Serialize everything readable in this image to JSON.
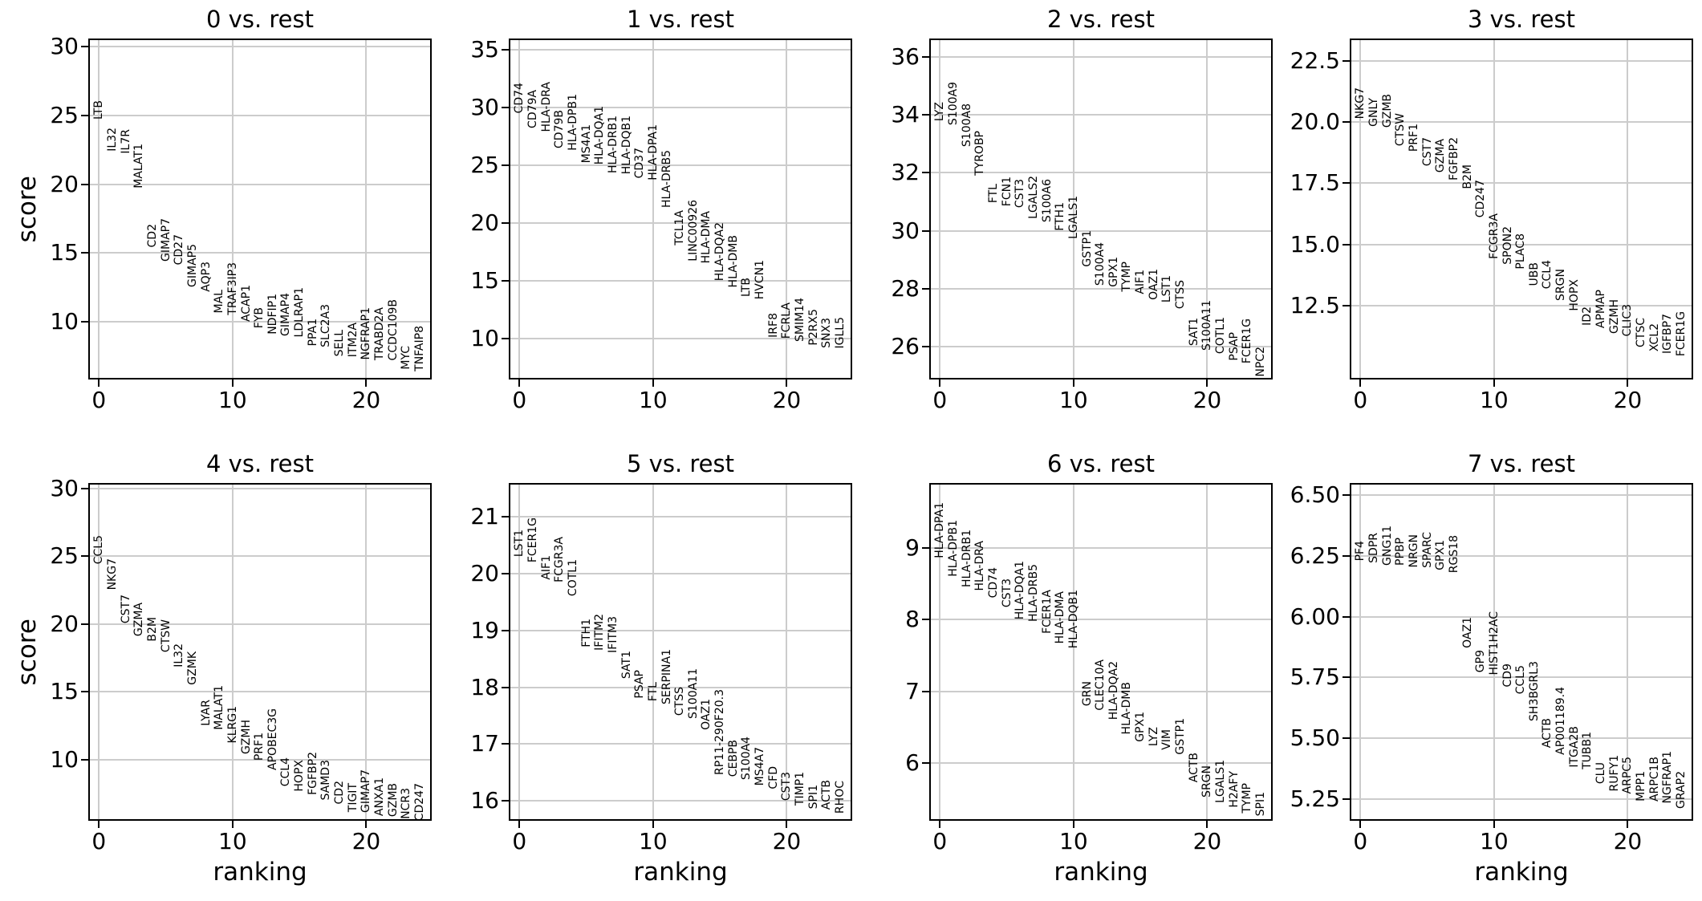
{
  "figure": {
    "background": "#ffffff",
    "grid_color": "#cccccc",
    "text_color": "#000000"
  },
  "chart_data": {
    "type": "scatter",
    "subtype": "rank-genes-groups-text-labels",
    "xlabel": "ranking",
    "ylabel": "score",
    "grid": true,
    "legend_position": "none",
    "xlim": [
      -0.8,
      24.9
    ],
    "xticks": [
      0,
      10,
      20
    ],
    "xtick_labels": [
      "0",
      "10",
      "20"
    ],
    "panels": [
      {
        "title": "0 vs. rest",
        "ylim": [
          5.8,
          30.6
        ],
        "yticks": [
          30,
          25,
          20,
          15,
          10
        ],
        "ytick_labels": [
          "30",
          "25",
          "20",
          "15",
          "10"
        ],
        "genes": [
          "LTB",
          "IL32",
          "IL7R",
          "MALAT1",
          "CD2",
          "GIMAP7",
          "CD27",
          "GIMAP5",
          "AQP3",
          "MAL",
          "TRAF3IP3",
          "ACAP1",
          "FYB",
          "NDFIP1",
          "GIMAP4",
          "LDLRAP1",
          "PPA1",
          "SLC2A3",
          "SELL",
          "ITM2A",
          "NGFRAP1",
          "TRABD2A",
          "CCDC109B",
          "MYC",
          "TNFAIP8"
        ],
        "scores": [
          24.7,
          22.4,
          22.2,
          19.7,
          15.4,
          14.4,
          14.1,
          12.5,
          12.2,
          10.6,
          10.5,
          10.0,
          9.5,
          9.1,
          8.95,
          8.85,
          8.2,
          8.15,
          7.5,
          7.4,
          7.25,
          7.2,
          7.15,
          6.5,
          6.4
        ]
      },
      {
        "title": "1 vs. rest",
        "ylim": [
          6.45,
          36.0
        ],
        "yticks": [
          35,
          30,
          25,
          20,
          15,
          10
        ],
        "ytick_labels": [
          "35",
          "30",
          "25",
          "20",
          "15",
          "10"
        ],
        "genes": [
          "CD74",
          "CD79A",
          "HLA-DRA",
          "CD79B",
          "HLA-DPB1",
          "MS4A1",
          "HLA-DQA1",
          "HLA-DRB1",
          "HLA-DQB1",
          "CD37",
          "HLA-DPA1",
          "HLA-DRB5",
          "TCL1A",
          "LINC00926",
          "HLA-DMA",
          "HLA-DQA2",
          "HLA-DMB",
          "LTB",
          "HVCN1",
          "IRF8",
          "FCRLA",
          "SMIM14",
          "P2RX5",
          "SNX3",
          "IGLL5"
        ],
        "scores": [
          29.5,
          28.2,
          27.9,
          26.5,
          26.3,
          25.2,
          25.1,
          24.3,
          24.2,
          23.9,
          23.7,
          21.3,
          18.1,
          16.7,
          16.5,
          15.0,
          14.45,
          13.6,
          13.4,
          10.1,
          9.95,
          9.7,
          9.4,
          9.2,
          9.1
        ]
      },
      {
        "title": "2 vs. rest",
        "ylim": [
          24.85,
          36.65
        ],
        "yticks": [
          36,
          34,
          32,
          30,
          28,
          26
        ],
        "ytick_labels": [
          "36",
          "34",
          "32",
          "30",
          "28",
          "26"
        ],
        "genes": [
          "LYZ",
          "S100A9",
          "S100A8",
          "TYROBP",
          "FTL",
          "FCN1",
          "CST3",
          "LGALS2",
          "S100A6",
          "FTH1",
          "LGALS1",
          "GSTP1",
          "S100A4",
          "GPX1",
          "TYMP",
          "AIF1",
          "OAZ1",
          "LST1",
          "CTSS",
          "SAT1",
          "S100A11",
          "COTL1",
          "PSAP",
          "FCER1G",
          "NPC2"
        ],
        "scores": [
          33.8,
          33.65,
          32.9,
          31.9,
          30.95,
          30.85,
          30.8,
          30.4,
          30.3,
          30.0,
          29.7,
          28.75,
          28.1,
          28.05,
          27.9,
          27.8,
          27.6,
          27.5,
          27.3,
          26.0,
          25.85,
          25.75,
          25.5,
          25.4,
          24.95
        ]
      },
      {
        "title": "3 vs. rest",
        "ylim": [
          9.5,
          23.4
        ],
        "yticks": [
          22.5,
          20.0,
          17.5,
          15.0,
          12.5
        ],
        "ytick_labels": [
          "22.5",
          "20.0",
          "17.5",
          "15.0",
          "12.5"
        ],
        "genes": [
          "NKG7",
          "GNLY",
          "GZMB",
          "CTSW",
          "PRF1",
          "CST7",
          "GZMA",
          "FGFBP2",
          "B2M",
          "CD247",
          "FCGR3A",
          "SPON2",
          "PLAC8",
          "UBB",
          "CCL4",
          "SRGN",
          "HOPX",
          "ID2",
          "APMAP",
          "GZMH",
          "CLIC3",
          "CTSC",
          "XCL2",
          "IGFBP7",
          "FCER1G"
        ],
        "scores": [
          20.1,
          19.8,
          19.75,
          19.0,
          18.8,
          18.2,
          17.95,
          17.6,
          17.25,
          16.1,
          14.4,
          14.2,
          14.0,
          13.3,
          13.2,
          12.7,
          12.3,
          11.7,
          11.6,
          11.35,
          11.25,
          10.8,
          10.65,
          10.55,
          10.45
        ]
      },
      {
        "title": "4 vs. rest",
        "ylim": [
          5.5,
          30.4
        ],
        "yticks": [
          30,
          25,
          20,
          15,
          10
        ],
        "ytick_labels": [
          "30",
          "25",
          "20",
          "15",
          "10"
        ],
        "genes": [
          "CCL5",
          "NKG7",
          "CST7",
          "GZMA",
          "B2M",
          "CTSW",
          "IL32",
          "GZMK",
          "LYAR",
          "MALAT1",
          "KLRG1",
          "GZMH",
          "PRF1",
          "APOBEC3G",
          "CCL4",
          "HOPX",
          "FGFBP2",
          "SAMD3",
          "CD2",
          "TIGIT",
          "GIMAP7",
          "ANXA1",
          "GZMB",
          "NCR3",
          "CD247"
        ],
        "scores": [
          24.4,
          22.5,
          20.05,
          19.1,
          18.7,
          17.9,
          16.8,
          15.5,
          12.5,
          12.2,
          11.2,
          10.4,
          9.9,
          9.25,
          8.05,
          7.65,
          7.4,
          7.0,
          6.7,
          6.15,
          6.1,
          5.85,
          5.8,
          5.6,
          5.5
        ]
      },
      {
        "title": "5 vs. rest",
        "ylim": [
          15.65,
          21.6
        ],
        "yticks": [
          21,
          20,
          19,
          18,
          17,
          16
        ],
        "ytick_labels": [
          "21",
          "20",
          "19",
          "18",
          "17",
          "16"
        ],
        "genes": [
          "LST1",
          "FCER1G",
          "AIF1",
          "FCGR3A",
          "COTL1",
          "FTH1",
          "IFITM2",
          "IFITM3",
          "SAT1",
          "PSAP",
          "FTL",
          "SERPINA1",
          "CTSS",
          "S100A11",
          "OAZ1",
          "RP11-290F20.3",
          "CEBPB",
          "S100A4",
          "MS4A7",
          "CFD",
          "CST3",
          "TIMP1",
          "SPI1",
          "ACTB",
          "RHOC"
        ],
        "scores": [
          20.3,
          20.2,
          19.9,
          19.85,
          19.6,
          18.7,
          18.65,
          18.6,
          18.15,
          17.8,
          17.75,
          17.7,
          17.5,
          17.45,
          17.25,
          16.45,
          16.42,
          16.37,
          16.26,
          16.2,
          16.0,
          15.92,
          15.86,
          15.84,
          15.78
        ]
      },
      {
        "title": "6 vs. rest",
        "ylim": [
          5.2,
          9.9
        ],
        "yticks": [
          9,
          8,
          7,
          6
        ],
        "ytick_labels": [
          "9",
          "8",
          "7",
          "6"
        ],
        "genes": [
          "HLA-DPA1",
          "HLA-DPB1",
          "HLA-DRB1",
          "HLA-DRA",
          "CD74",
          "CST3",
          "HLA-DQA1",
          "HLA-DRB5",
          "FCER1A",
          "HLA-DMA",
          "HLA-DQB1",
          "GRN",
          "CLEC10A",
          "HLA-DQA2",
          "HLA-DMB",
          "GPX1",
          "LYZ",
          "VIM",
          "GSTP1",
          "ACTB",
          "SRGN",
          "LGALS1",
          "H2AFY",
          "TYMP",
          "SPI1"
        ],
        "scores": [
          8.85,
          8.6,
          8.45,
          8.4,
          8.3,
          8.17,
          8.0,
          7.97,
          7.8,
          7.66,
          7.6,
          6.8,
          6.73,
          6.6,
          6.4,
          6.3,
          6.24,
          6.18,
          6.12,
          5.73,
          5.53,
          5.45,
          5.38,
          5.3,
          5.26
        ]
      },
      {
        "title": "7 vs. rest",
        "ylim": [
          5.16,
          6.55
        ],
        "yticks": [
          6.5,
          6.25,
          6.0,
          5.75,
          5.5,
          5.25
        ],
        "ytick_labels": [
          "6.50",
          "6.25",
          "6.00",
          "5.75",
          "5.50",
          "5.25"
        ],
        "genes": [
          "PF4",
          "SDPR",
          "GNG11",
          "PPBP",
          "NRGN",
          "SPARC",
          "GPX1",
          "RGS18",
          "OAZ1",
          "GP9",
          "HIST1H2AC",
          "CD9",
          "CCL5",
          "SH3BGRL3",
          "ACTB",
          "AP001189.4",
          "ITGA2B",
          "TUBB1",
          "CLU",
          "RUFY1",
          "ARPC5",
          "MPP1",
          "ARPC1B",
          "NGFRAP1",
          "GRAP2"
        ],
        "scores": [
          6.23,
          6.22,
          6.21,
          6.21,
          6.2,
          6.2,
          6.19,
          6.18,
          5.87,
          5.77,
          5.76,
          5.71,
          5.68,
          5.57,
          5.46,
          5.43,
          5.38,
          5.37,
          5.31,
          5.28,
          5.27,
          5.24,
          5.24,
          5.23,
          5.21
        ]
      }
    ]
  }
}
